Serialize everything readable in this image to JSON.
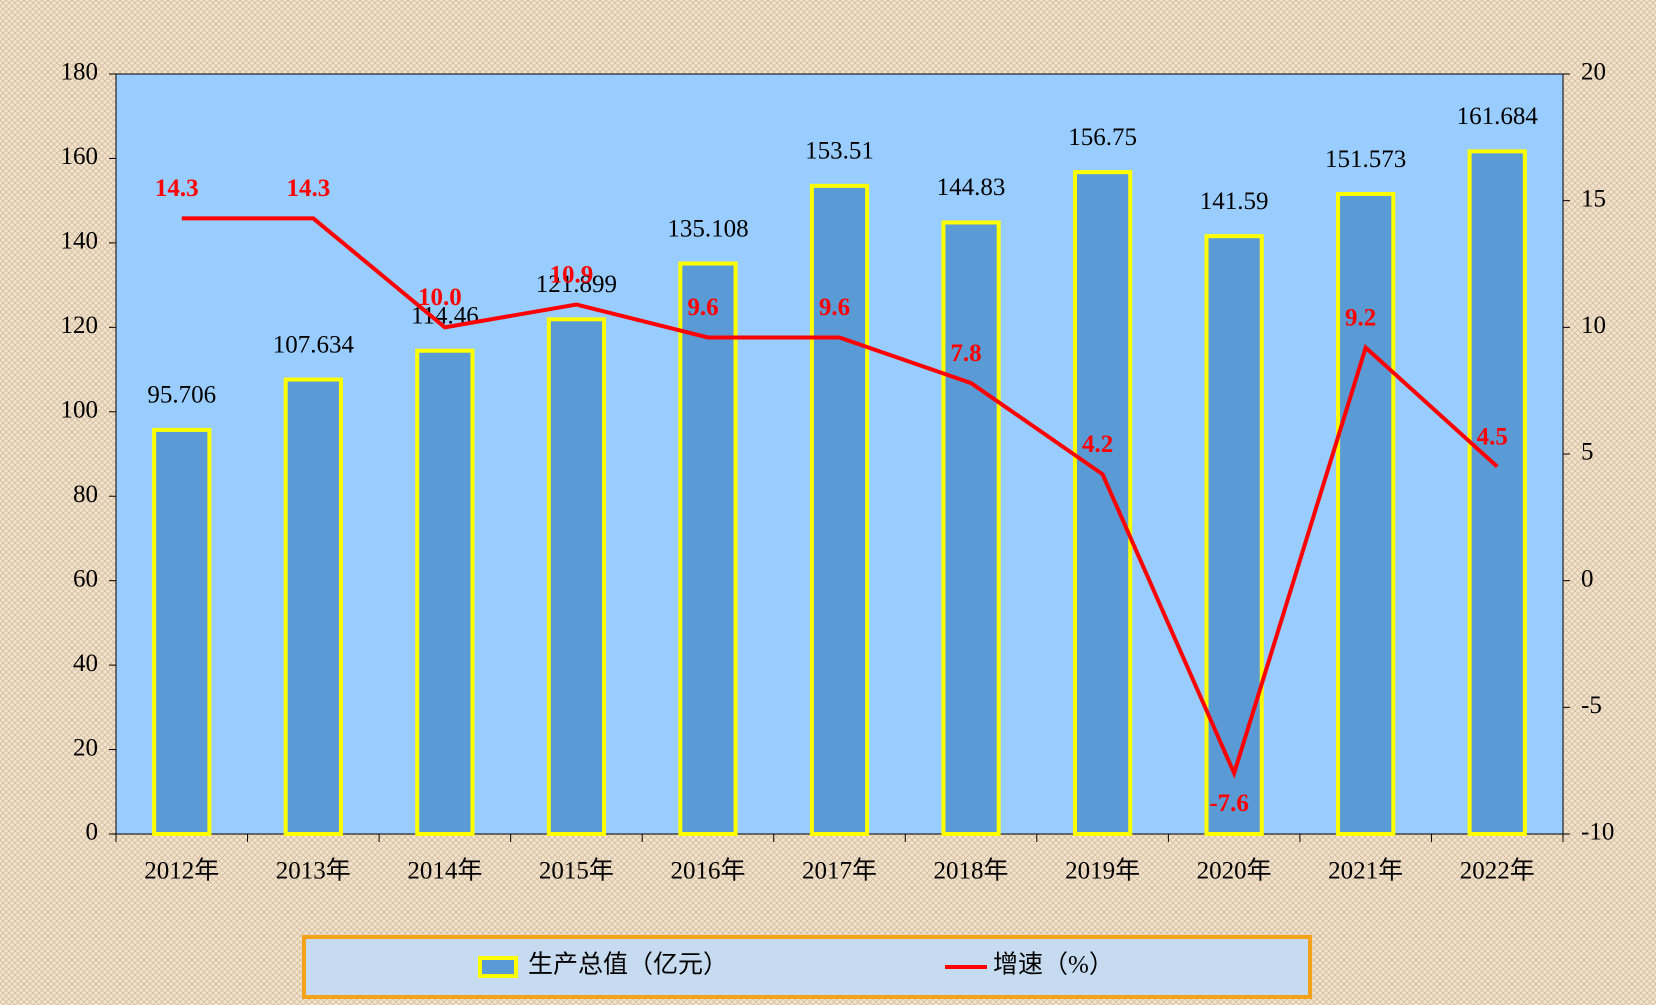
{
  "chart_data": {
    "type": "combo",
    "categories": [
      "2012年",
      "2013年",
      "2014年",
      "2015年",
      "2016年",
      "2017年",
      "2018年",
      "2019年",
      "2020年",
      "2021年",
      "2022年"
    ],
    "series": [
      {
        "name": "生产总值（亿元）",
        "type": "bar",
        "color": "#5b9bd5",
        "edge": "#ffff00",
        "values": [
          95.706,
          107.634,
          114.46,
          121.899,
          135.108,
          153.51,
          144.83,
          156.75,
          141.59,
          151.573,
          161.684
        ]
      },
      {
        "name": "增速（%）",
        "type": "line",
        "axis": "y2",
        "color": "#ff0000",
        "values": [
          14.3,
          14.3,
          10.0,
          10.9,
          9.6,
          9.6,
          7.8,
          4.2,
          -7.6,
          9.2,
          4.5
        ],
        "value_labels": [
          "14.3",
          "14.3",
          "10.0",
          "10.9",
          "9.6",
          "9.6",
          "7.8",
          "4.2",
          "-7.6",
          "9.2",
          "4.5"
        ]
      }
    ],
    "ylim": [
      0,
      180
    ],
    "yticks": [
      0,
      20,
      40,
      60,
      80,
      100,
      120,
      140,
      160,
      180
    ],
    "y2lim": [
      -10,
      20
    ],
    "y2ticks": [
      -10,
      -5,
      0,
      5,
      10,
      15,
      20
    ],
    "legend": "bottom"
  }
}
